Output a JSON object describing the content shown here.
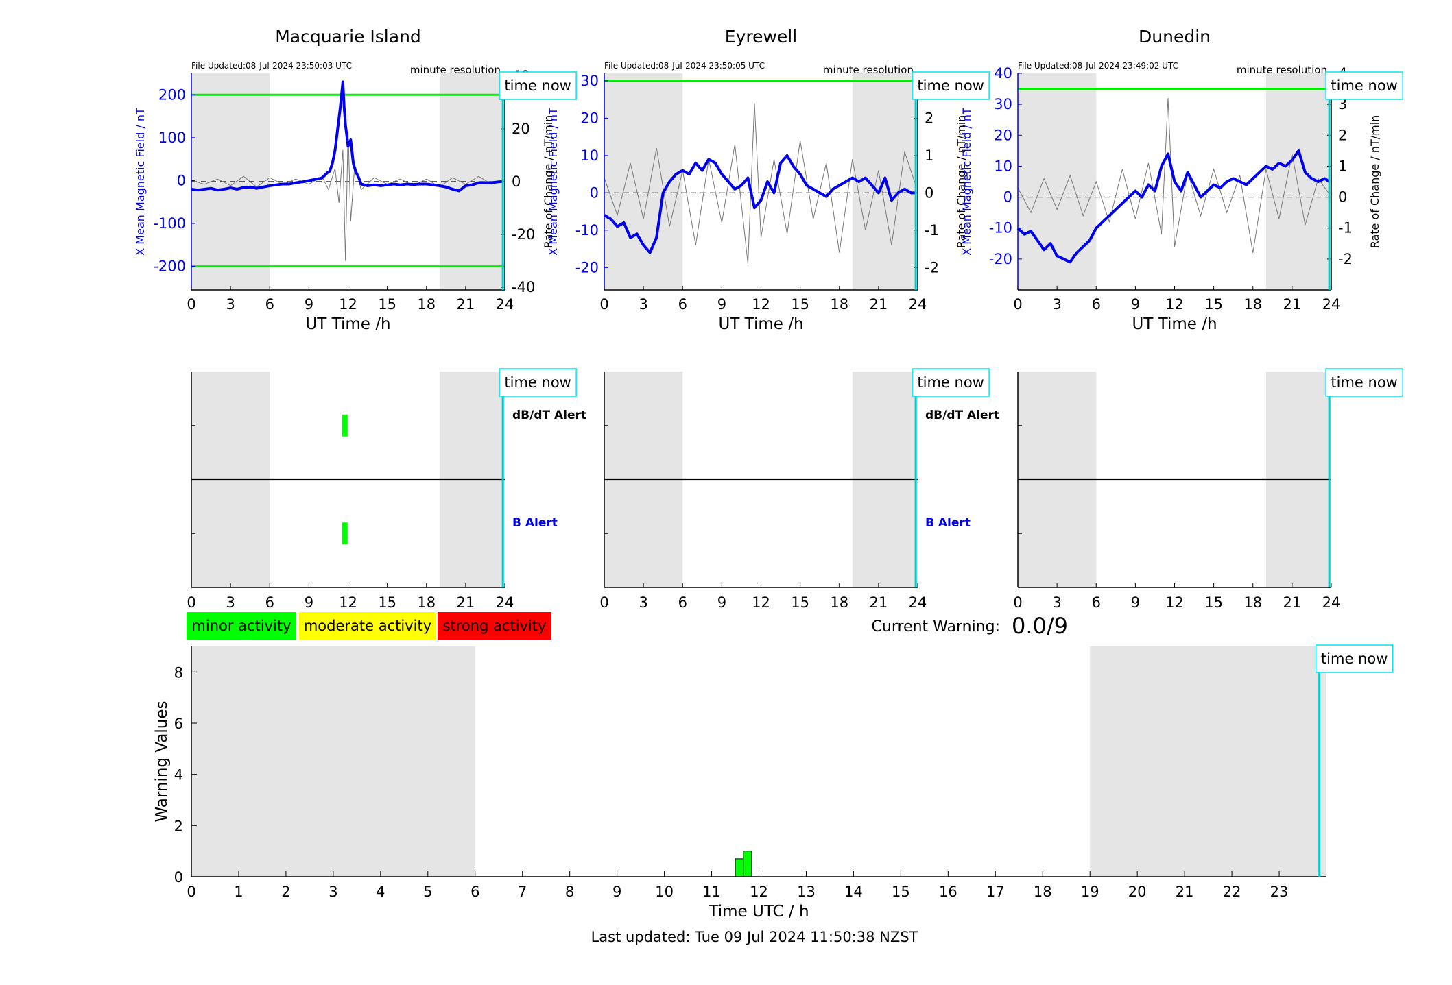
{
  "page": {
    "footer": "Last updated: Tue 09 Jul 2024 11:50:38 NZST",
    "current_warning_label": "Current Warning:",
    "current_warning_value": "0.0/9",
    "time_now_label": "time now",
    "resolution_label": "minute resolution",
    "legend": [
      {
        "label": "minor activity",
        "color": "#00ff00"
      },
      {
        "label": "moderate activity",
        "color": "#ffff00"
      },
      {
        "label": "strong activity",
        "color": "#ff0000"
      }
    ]
  },
  "chart_data": [
    {
      "type": "line",
      "panel": "magnetometer",
      "title": "Macquarie Island",
      "file_updated": "File Updated:08-Jul-2024 23:50:03 UTC",
      "xlabel": "UT Time /h",
      "ylabel": "X Mean Magnetic Field / nT",
      "ylabel_right": "Rate of Change / nT/min",
      "xlim": [
        0,
        24
      ],
      "xticks": [
        0,
        3,
        6,
        9,
        12,
        15,
        18,
        21,
        24
      ],
      "ylim": [
        -255,
        250
      ],
      "yticks": [
        -200,
        -100,
        0,
        100,
        200
      ],
      "ylim_right": [
        -41,
        41
      ],
      "yticks_right": [
        -40,
        -20,
        0,
        20,
        40
      ],
      "thresholds": [
        200,
        -200
      ],
      "night_shading": [
        [
          0,
          6
        ],
        [
          19,
          24
        ]
      ],
      "time_now": 23.85,
      "series": [
        {
          "kind": "x_field",
          "x": [
            0,
            0.5,
            1,
            1.5,
            2,
            2.5,
            3,
            3.5,
            4,
            4.5,
            5,
            5.5,
            6,
            6.5,
            7,
            7.5,
            8,
            8.5,
            9,
            9.5,
            10,
            10.2,
            10.4,
            10.6,
            10.8,
            11,
            11.2,
            11.4,
            11.5,
            11.6,
            11.7,
            11.8,
            12,
            12.2,
            12.4,
            12.6,
            12.8,
            13,
            13.5,
            14,
            14.5,
            15,
            15.5,
            16,
            16.5,
            17,
            17.5,
            18,
            18.5,
            19,
            19.5,
            20,
            20.5,
            21,
            21.5,
            22,
            22.5,
            23,
            23.5,
            23.85
          ],
          "y": [
            -20,
            -22,
            -20,
            -18,
            -22,
            -20,
            -17,
            -20,
            -16,
            -15,
            -18,
            -15,
            -12,
            -10,
            -8,
            -8,
            -5,
            -3,
            0,
            3,
            6,
            12,
            18,
            22,
            40,
            70,
            120,
            170,
            200,
            230,
            170,
            130,
            80,
            95,
            40,
            20,
            8,
            -8,
            -12,
            -10,
            -12,
            -10,
            -8,
            -10,
            -8,
            -9,
            -8,
            -8,
            -10,
            -12,
            -15,
            -20,
            -24,
            -12,
            -10,
            -5,
            -5,
            -5,
            -3,
            -2
          ]
        },
        {
          "kind": "rate_of_change",
          "x": [
            0,
            1,
            2,
            3,
            4,
            5,
            6,
            7,
            8,
            9,
            10,
            10.5,
            11,
            11.3,
            11.6,
            11.8,
            12,
            12.2,
            12.5,
            13,
            14,
            15,
            16,
            17,
            18,
            19,
            20,
            21,
            22,
            23,
            23.85
          ],
          "y": [
            0.5,
            -1,
            1,
            -1.5,
            2,
            -2,
            1.5,
            -1,
            1,
            -1,
            2,
            -3,
            5,
            -8,
            12,
            -30,
            20,
            -15,
            6,
            -3,
            1.5,
            -1,
            1,
            -1.5,
            1,
            -2,
            1.5,
            -1,
            2,
            -1,
            0.5
          ]
        }
      ]
    },
    {
      "type": "line",
      "panel": "magnetometer",
      "title": "Eyrewell",
      "file_updated": "File Updated:08-Jul-2024 23:50:05 UTC",
      "xlabel": "UT Time /h",
      "ylabel": "X Mean Magnetic Field / nT",
      "ylabel_right": "Rate of Change / nT/min",
      "xlim": [
        0,
        24
      ],
      "xticks": [
        0,
        3,
        6,
        9,
        12,
        15,
        18,
        21,
        24
      ],
      "ylim": [
        -26,
        32
      ],
      "yticks": [
        -20,
        -10,
        0,
        10,
        20,
        30
      ],
      "ylim_right": [
        -2.6,
        3.2
      ],
      "yticks_right": [
        -2,
        -1,
        0,
        1,
        2,
        3
      ],
      "thresholds": [
        30
      ],
      "night_shading": [
        [
          0,
          6
        ],
        [
          19,
          24
        ]
      ],
      "time_now": 23.85,
      "series": [
        {
          "kind": "x_field",
          "x": [
            0,
            0.5,
            1,
            1.5,
            2,
            2.5,
            3,
            3.5,
            4,
            4.5,
            5,
            5.5,
            6,
            6.5,
            7,
            7.5,
            8,
            8.5,
            9,
            9.5,
            10,
            10.5,
            11,
            11.5,
            12,
            12.5,
            13,
            13.5,
            14,
            14.5,
            15,
            15.5,
            16,
            16.5,
            17,
            17.5,
            18,
            18.5,
            19,
            19.5,
            20,
            20.5,
            21,
            21.5,
            22,
            22.5,
            23,
            23.5,
            23.85
          ],
          "y": [
            -6,
            -7,
            -9,
            -8,
            -12,
            -11,
            -14,
            -16,
            -12,
            0,
            3,
            5,
            6,
            5,
            8,
            6,
            9,
            8,
            5,
            3,
            1,
            2,
            4,
            -4,
            -2,
            3,
            0,
            8,
            10,
            7,
            5,
            2,
            1,
            0,
            -1,
            1,
            2,
            3,
            4,
            3,
            4,
            2,
            0,
            4,
            -2,
            0,
            1,
            0,
            0
          ]
        },
        {
          "kind": "rate_of_change",
          "x": [
            0,
            1,
            2,
            3,
            4,
            5,
            6,
            7,
            8,
            9,
            10,
            11,
            11.5,
            12,
            13,
            14,
            15,
            16,
            17,
            18,
            19,
            20,
            21,
            22,
            23,
            23.85
          ],
          "y": [
            0.4,
            -0.6,
            0.8,
            -0.7,
            1.2,
            -0.9,
            0.6,
            -1.4,
            0.9,
            -0.8,
            1.3,
            -1.9,
            2.4,
            -1.2,
            0.9,
            -1.1,
            1.4,
            -0.7,
            0.8,
            -1.6,
            0.9,
            -1.0,
            0.6,
            -1.4,
            1.1,
            0.2
          ]
        }
      ]
    },
    {
      "type": "line",
      "panel": "magnetometer",
      "title": "Dunedin",
      "file_updated": "File Updated:08-Jul-2024 23:49:02 UTC",
      "xlabel": "UT Time /h",
      "ylabel": "X Mean Magnetic Field / nT",
      "ylabel_right": "Rate of Change / nT/min",
      "xlim": [
        0,
        24
      ],
      "xticks": [
        0,
        3,
        6,
        9,
        12,
        15,
        18,
        21,
        24
      ],
      "ylim": [
        -30,
        40
      ],
      "yticks": [
        -20,
        -10,
        0,
        10,
        20,
        30,
        40
      ],
      "ylim_right": [
        -3,
        4
      ],
      "yticks_right": [
        -2,
        -1,
        0,
        1,
        2,
        3,
        4
      ],
      "thresholds": [
        35
      ],
      "night_shading": [
        [
          0,
          6
        ],
        [
          19,
          24
        ]
      ],
      "time_now": 23.85,
      "series": [
        {
          "kind": "x_field",
          "x": [
            0,
            0.5,
            1,
            1.5,
            2,
            2.5,
            3,
            3.5,
            4,
            4.5,
            5,
            5.5,
            6,
            6.5,
            7,
            7.5,
            8,
            8.5,
            9,
            9.5,
            10,
            10.5,
            11,
            11.5,
            12,
            12.5,
            13,
            13.5,
            14,
            14.5,
            15,
            15.5,
            16,
            16.5,
            17,
            17.5,
            18,
            18.5,
            19,
            19.5,
            20,
            20.5,
            21,
            21.5,
            22,
            22.5,
            23,
            23.5,
            23.85
          ],
          "y": [
            -10,
            -12,
            -11,
            -14,
            -17,
            -15,
            -19,
            -20,
            -21,
            -18,
            -16,
            -14,
            -10,
            -8,
            -6,
            -4,
            -2,
            0,
            2,
            0,
            4,
            2,
            10,
            14,
            5,
            2,
            8,
            4,
            0,
            2,
            4,
            3,
            5,
            6,
            5,
            4,
            6,
            8,
            10,
            9,
            11,
            10,
            12,
            15,
            8,
            6,
            5,
            6,
            5
          ]
        },
        {
          "kind": "rate_of_change",
          "x": [
            0,
            1,
            2,
            3,
            4,
            5,
            6,
            7,
            8,
            9,
            10,
            11,
            11.5,
            12,
            13,
            14,
            15,
            16,
            17,
            18,
            19,
            20,
            21,
            22,
            23,
            23.85
          ],
          "y": [
            0.3,
            -0.5,
            0.6,
            -0.4,
            0.7,
            -0.6,
            0.5,
            -0.8,
            0.9,
            -0.7,
            1.1,
            -1.2,
            3.2,
            -1.6,
            0.8,
            -0.6,
            0.9,
            -0.5,
            0.7,
            -1.8,
            0.9,
            -0.7,
            1.4,
            -0.9,
            0.6,
            0.1
          ]
        }
      ]
    },
    {
      "type": "bar",
      "panel": "alerts",
      "title": "Macquarie Island",
      "xlim": [
        0,
        24
      ],
      "xticks": [
        0,
        3,
        6,
        9,
        12,
        15,
        18,
        21,
        24
      ],
      "row_labels": [
        "dB/dT Alert",
        "B Alert"
      ],
      "night_shading": [
        [
          0,
          6
        ],
        [
          19,
          24
        ]
      ],
      "time_now": 23.85,
      "alerts": [
        {
          "row": "dB/dT Alert",
          "hour": 11.75,
          "level": "minor"
        },
        {
          "row": "B Alert",
          "hour": 11.75,
          "level": "minor"
        }
      ]
    },
    {
      "type": "bar",
      "panel": "alerts",
      "title": "Eyrewell",
      "xlim": [
        0,
        24
      ],
      "xticks": [
        0,
        3,
        6,
        9,
        12,
        15,
        18,
        21,
        24
      ],
      "row_labels": [
        "dB/dT Alert",
        "B Alert"
      ],
      "night_shading": [
        [
          0,
          6
        ],
        [
          19,
          24
        ]
      ],
      "time_now": 23.85,
      "alerts": []
    },
    {
      "type": "bar",
      "panel": "alerts",
      "title": "Dunedin",
      "xlim": [
        0,
        24
      ],
      "xticks": [
        0,
        3,
        6,
        9,
        12,
        15,
        18,
        21,
        24
      ],
      "row_labels": [],
      "night_shading": [
        [
          0,
          6
        ],
        [
          19,
          24
        ]
      ],
      "time_now": 23.85,
      "alerts": []
    },
    {
      "type": "bar",
      "panel": "warning",
      "xlabel": "Time UTC / h",
      "ylabel": "Warning Values",
      "xlim": [
        0,
        24
      ],
      "xticks": [
        0,
        1,
        2,
        3,
        4,
        5,
        6,
        7,
        8,
        9,
        10,
        11,
        12,
        13,
        14,
        15,
        16,
        17,
        18,
        19,
        20,
        21,
        22,
        23
      ],
      "ylim": [
        0,
        9
      ],
      "yticks": [
        0,
        2,
        4,
        6,
        8
      ],
      "night_shading": [
        [
          0,
          6
        ],
        [
          19,
          24
        ]
      ],
      "time_now": 23.85,
      "bars": [
        {
          "x": 11.5,
          "width": 0.17,
          "value": 0.7
        },
        {
          "x": 11.67,
          "width": 0.17,
          "value": 1.0
        }
      ]
    }
  ]
}
